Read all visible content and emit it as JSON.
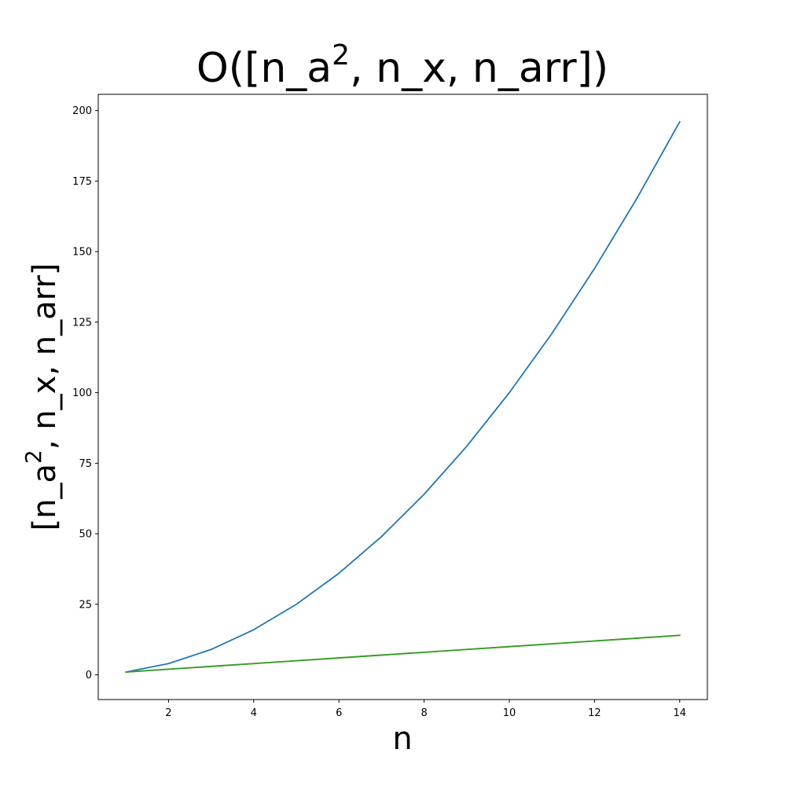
{
  "chart_data": {
    "type": "line",
    "title": {
      "pre": "O([n_a",
      "sup": "2",
      "post": ", n_x, n_arr])"
    },
    "xlabel": "n",
    "ylabel": {
      "pre": "[n_a",
      "sup": "2",
      "post": ", n_x, n_arr]"
    },
    "xlim": [
      0.35,
      14.65
    ],
    "ylim": [
      -8.75,
      205.75
    ],
    "xticks": [
      2,
      4,
      6,
      8,
      10,
      12,
      14
    ],
    "yticks": [
      0,
      25,
      50,
      75,
      100,
      125,
      150,
      175,
      200
    ],
    "grid": false,
    "series": [
      {
        "color": "#1f77b4",
        "x": [
          1,
          2,
          3,
          4,
          5,
          6,
          7,
          8,
          9,
          10,
          11,
          12,
          13,
          14
        ],
        "y": [
          1,
          4,
          9,
          16,
          25,
          36,
          49,
          64,
          81,
          100,
          121,
          144,
          169,
          196
        ]
      },
      {
        "color": "#ff7f0e",
        "x": [
          1,
          2,
          3,
          4,
          5,
          6,
          7,
          8,
          9,
          10,
          11,
          12,
          13,
          14
        ],
        "y": [
          1,
          2,
          3,
          4,
          5,
          6,
          7,
          8,
          9,
          10,
          11,
          12,
          13,
          14
        ]
      },
      {
        "color": "#2ca02c",
        "x": [
          1,
          2,
          3,
          4,
          5,
          6,
          7,
          8,
          9,
          10,
          11,
          12,
          13,
          14
        ],
        "y": [
          1,
          2,
          3,
          4,
          5,
          6,
          7,
          8,
          9,
          10,
          11,
          12,
          13,
          14
        ]
      }
    ]
  }
}
